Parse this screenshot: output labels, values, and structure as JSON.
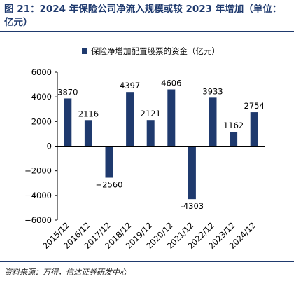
{
  "title": "图 21：2024 年保险公司净流入规模或较 2023 年增加（单位：亿元）",
  "source": "资料来源：万得，信达证券研发中心",
  "colors": {
    "bar": "#1f3a6e",
    "title": "#1f3a6e",
    "axis": "#000000"
  },
  "chart_data": {
    "type": "bar",
    "categories": [
      "2015/12",
      "2016/12",
      "2017/12",
      "2018/12",
      "2019/12",
      "2020/12",
      "2021/12",
      "2022/12",
      "2023/12",
      "2024/12"
    ],
    "series": [
      {
        "name": "保险净增加配置股票的资金（亿元）",
        "values": [
          3870,
          2116,
          -2560,
          4397,
          2121,
          4606,
          -4303,
          3933,
          1162,
          2754
        ]
      }
    ],
    "data_labels": [
      "3870",
      "2116",
      "−2560",
      "4397",
      "2121",
      "4606",
      "-4303",
      "3933",
      "1162",
      "2754"
    ],
    "ylim": [
      -6000,
      6000
    ],
    "yticks": [
      6000,
      4000,
      2000,
      0,
      -2000,
      -4000,
      -6000
    ],
    "ytick_labels": [
      "6000",
      "4000",
      "2000",
      "0",
      "−2000",
      "−4000",
      "−6000"
    ],
    "legend_position": "top",
    "grid": false
  }
}
